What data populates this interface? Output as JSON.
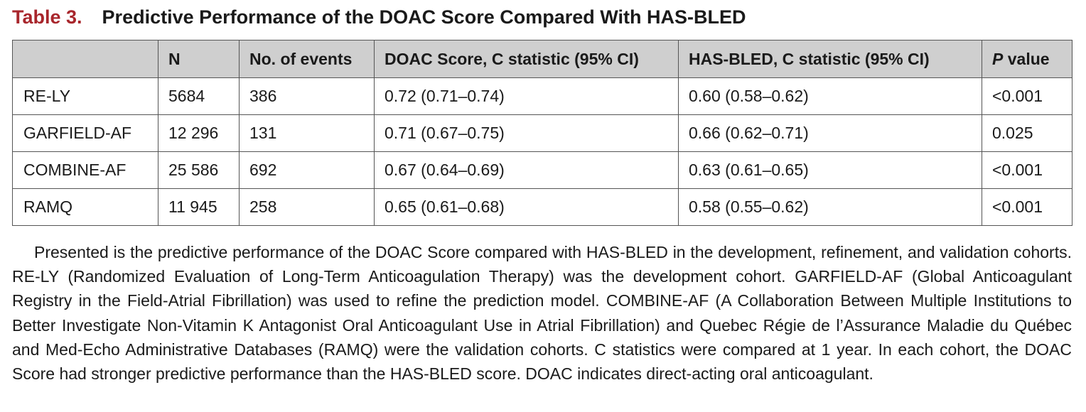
{
  "title": {
    "label": "Table 3.",
    "text": "Predictive Performance of the DOAC Score Compared With HAS-BLED"
  },
  "table": {
    "headers": {
      "cohort": "",
      "n": "N",
      "events": "No. of events",
      "doac": "DOAC Score, C statistic (95% CI)",
      "hasbled": "HAS-BLED, C statistic (95% CI)",
      "p_italic": "P",
      "p_rest": " value"
    },
    "rows": [
      {
        "cohort": "RE-LY",
        "n": "5684",
        "events": "386",
        "doac": "0.72 (0.71–0.74)",
        "hasbled": "0.60 (0.58–0.62)",
        "p": "<0.001"
      },
      {
        "cohort": "GARFIELD-AF",
        "n": "12 296",
        "events": "131",
        "doac": "0.71 (0.67–0.75)",
        "hasbled": "0.66 (0.62–0.71)",
        "p": "0.025"
      },
      {
        "cohort": "COMBINE-AF",
        "n": "25 586",
        "events": "692",
        "doac": "0.67 (0.64–0.69)",
        "hasbled": "0.63 (0.61–0.65)",
        "p": "<0.001"
      },
      {
        "cohort": "RAMQ",
        "n": "11 945",
        "events": "258",
        "doac": "0.65 (0.61–0.68)",
        "hasbled": "0.58 (0.55–0.62)",
        "p": "<0.001"
      }
    ]
  },
  "caption": "Presented is the predictive performance of the DOAC Score compared with HAS-BLED in the development, refinement, and validation cohorts. RE-LY (Randomized Evaluation of Long-Term Anticoagulation Therapy) was the development cohort. GARFIELD-AF (Global Anticoagulant Registry in the Field-Atrial Fibrillation) was used to refine the prediction model. COMBINE-AF (A Collaboration Between Multiple Institutions to Better Investigate Non-Vitamin K Antagonist Oral Anticoagulant Use in Atrial Fibrillation) and Quebec Régie de l’Assurance Maladie du Québec and Med-Echo Administrative Databases (RAMQ) were the validation cohorts. C statistics were compared at 1 year. In each cohort, the DOAC Score had stronger predictive performance than the HAS-BLED score. DOAC indicates direct-acting oral anticoagulant."
}
